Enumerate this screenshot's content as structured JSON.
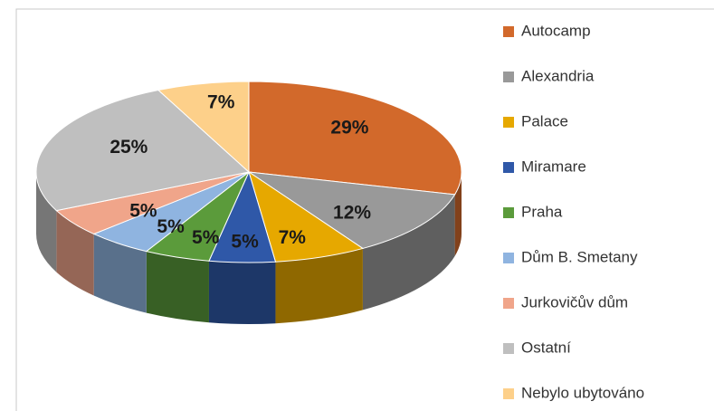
{
  "chart_data": {
    "type": "pie3d",
    "categories": [
      "Autocamp",
      "Alexandria",
      "Palace",
      "Miramare",
      "Praha",
      "Dům B. Smetany",
      "Jurkovičův dům",
      "Ostatní",
      "Nebylo ubytováno"
    ],
    "values": [
      29,
      12,
      7,
      5,
      5,
      5,
      5,
      25,
      7
    ],
    "value_labels": [
      "29%",
      "12%",
      "7%",
      "5%",
      "5%",
      "5%",
      "5%",
      "25%",
      "7%"
    ],
    "colors": [
      "#d2692b",
      "#999999",
      "#e6a800",
      "#2f58a8",
      "#5b9b3b",
      "#8fb4e0",
      "#f0a58a",
      "#bfbfbf",
      "#fdd08a"
    ],
    "legend": "right"
  }
}
